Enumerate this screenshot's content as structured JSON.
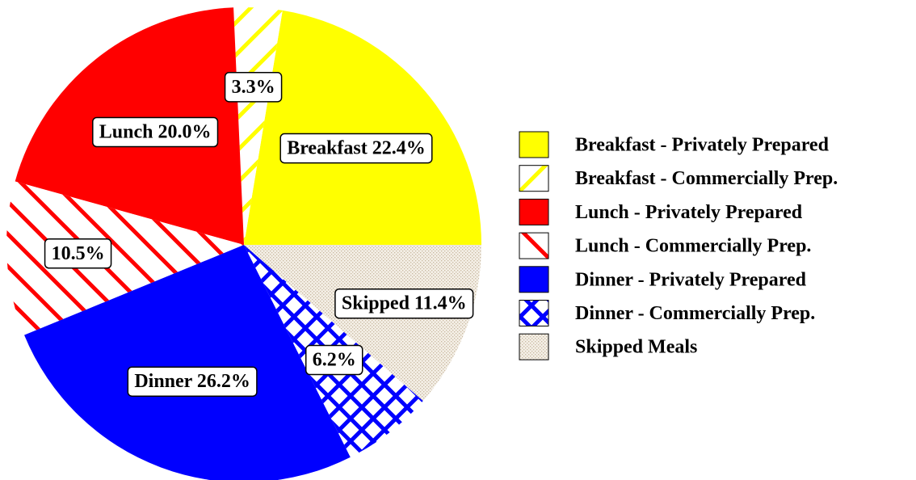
{
  "chart_data": {
    "type": "pie",
    "categories": [
      "Breakfast - Privately Prepared",
      "Breakfast - Commercially Prep.",
      "Lunch - Privately Prepared",
      "Lunch - Commercially Prep.",
      "Dinner - Privately Prepared",
      "Dinner - Commercially Prep.",
      "Skipped Meals"
    ],
    "values": [
      22.4,
      3.3,
      20.0,
      10.5,
      26.2,
      6.2,
      11.4
    ],
    "value_labels": [
      "Breakfast 22.4%",
      "3.3%",
      "Lunch 20.0%",
      "10.5%",
      "Dinner 26.2%",
      "6.2%",
      "Skipped 11.4%"
    ],
    "colors": [
      "#ffff00",
      "#ffff00",
      "#ff0000",
      "#ff0000",
      "#0000ff",
      "#0000ff",
      "#c8b8a0"
    ],
    "fills": [
      "solid",
      "hatch-forward",
      "solid",
      "hatch-back",
      "solid",
      "crosshatch",
      "dots"
    ],
    "legend": "right"
  }
}
